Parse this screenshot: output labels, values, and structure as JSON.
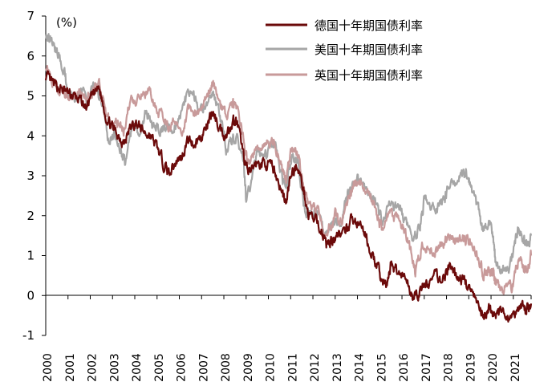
{
  "chart_data": {
    "type": "line",
    "title": "",
    "xlabel": "",
    "ylabel": "(%)",
    "ylim": [
      -1,
      7
    ],
    "xlim": [
      2000,
      2021.8
    ],
    "y_ticks": [
      "7",
      "6",
      "5",
      "4",
      "3",
      "2",
      "1",
      "0",
      "-1"
    ],
    "x_ticks": [
      "2000",
      "2001",
      "2002",
      "2003",
      "2004",
      "2005",
      "2006",
      "2007",
      "2008",
      "2009",
      "2010",
      "2011",
      "2012",
      "2013",
      "2014",
      "2015",
      "2016",
      "2017",
      "2018",
      "2019",
      "2020",
      "2021"
    ],
    "grid": false,
    "legend_position": "top-right",
    "series": [
      {
        "name": "德国十年期国债利率",
        "color": "#6b0a0a",
        "points": [
          [
            2000.0,
            5.5
          ],
          [
            2000.3,
            5.3
          ],
          [
            2000.6,
            5.2
          ],
          [
            2000.9,
            5.1
          ],
          [
            2001.2,
            5.0
          ],
          [
            2001.5,
            4.9
          ],
          [
            2001.8,
            4.7
          ],
          [
            2002.1,
            5.0
          ],
          [
            2002.4,
            5.2
          ],
          [
            2002.7,
            4.5
          ],
          [
            2003.0,
            4.2
          ],
          [
            2003.3,
            4.0
          ],
          [
            2003.5,
            3.8
          ],
          [
            2003.8,
            4.2
          ],
          [
            2004.1,
            4.3
          ],
          [
            2004.4,
            4.1
          ],
          [
            2004.7,
            4.0
          ],
          [
            2005.0,
            3.7
          ],
          [
            2005.3,
            3.3
          ],
          [
            2005.5,
            3.1
          ],
          [
            2005.8,
            3.3
          ],
          [
            2006.1,
            3.5
          ],
          [
            2006.4,
            3.9
          ],
          [
            2006.7,
            3.8
          ],
          [
            2007.0,
            4.0
          ],
          [
            2007.3,
            4.3
          ],
          [
            2007.5,
            4.6
          ],
          [
            2007.8,
            4.2
          ],
          [
            2008.1,
            4.0
          ],
          [
            2008.4,
            4.4
          ],
          [
            2008.6,
            4.3
          ],
          [
            2008.9,
            3.5
          ],
          [
            2009.1,
            3.0
          ],
          [
            2009.4,
            3.3
          ],
          [
            2009.7,
            3.3
          ],
          [
            2010.0,
            3.3
          ],
          [
            2010.3,
            3.1
          ],
          [
            2010.6,
            2.6
          ],
          [
            2010.8,
            2.3
          ],
          [
            2011.0,
            3.0
          ],
          [
            2011.3,
            3.3
          ],
          [
            2011.6,
            2.6
          ],
          [
            2011.8,
            2.0
          ],
          [
            2012.1,
            1.9
          ],
          [
            2012.4,
            1.6
          ],
          [
            2012.6,
            1.3
          ],
          [
            2012.9,
            1.4
          ],
          [
            2013.1,
            1.6
          ],
          [
            2013.4,
            1.5
          ],
          [
            2013.7,
            1.9
          ],
          [
            2014.0,
            1.8
          ],
          [
            2014.3,
            1.6
          ],
          [
            2014.6,
            1.1
          ],
          [
            2014.9,
            0.7
          ],
          [
            2015.1,
            0.4
          ],
          [
            2015.3,
            0.2
          ],
          [
            2015.5,
            0.8
          ],
          [
            2015.8,
            0.6
          ],
          [
            2016.1,
            0.5
          ],
          [
            2016.4,
            0.1
          ],
          [
            2016.6,
            -0.1
          ],
          [
            2016.9,
            0.2
          ],
          [
            2017.2,
            0.3
          ],
          [
            2017.5,
            0.5
          ],
          [
            2017.8,
            0.4
          ],
          [
            2018.1,
            0.7
          ],
          [
            2018.4,
            0.5
          ],
          [
            2018.7,
            0.4
          ],
          [
            2018.9,
            0.3
          ],
          [
            2019.2,
            0.0
          ],
          [
            2019.5,
            -0.4
          ],
          [
            2019.7,
            -0.6
          ],
          [
            2019.9,
            -0.3
          ],
          [
            2020.2,
            -0.5
          ],
          [
            2020.4,
            -0.4
          ],
          [
            2020.7,
            -0.5
          ],
          [
            2020.9,
            -0.6
          ],
          [
            2021.2,
            -0.3
          ],
          [
            2021.4,
            -0.2
          ],
          [
            2021.6,
            -0.4
          ],
          [
            2021.8,
            -0.2
          ]
        ]
      },
      {
        "name": "美国十年期国债利率",
        "color": "#a6a6a6",
        "points": [
          [
            2000.0,
            6.6
          ],
          [
            2000.2,
            6.4
          ],
          [
            2000.5,
            6.1
          ],
          [
            2000.8,
            5.7
          ],
          [
            2001.0,
            5.1
          ],
          [
            2001.3,
            5.0
          ],
          [
            2001.6,
            5.1
          ],
          [
            2001.9,
            4.9
          ],
          [
            2002.2,
            5.3
          ],
          [
            2002.5,
            4.9
          ],
          [
            2002.8,
            3.9
          ],
          [
            2003.1,
            4.0
          ],
          [
            2003.4,
            3.6
          ],
          [
            2003.6,
            3.3
          ],
          [
            2003.9,
            4.3
          ],
          [
            2004.2,
            4.0
          ],
          [
            2004.5,
            4.6
          ],
          [
            2004.8,
            4.2
          ],
          [
            2005.1,
            4.2
          ],
          [
            2005.4,
            4.2
          ],
          [
            2005.7,
            4.2
          ],
          [
            2006.0,
            4.5
          ],
          [
            2006.3,
            4.9
          ],
          [
            2006.6,
            5.1
          ],
          [
            2006.9,
            4.6
          ],
          [
            2007.2,
            4.7
          ],
          [
            2007.5,
            5.1
          ],
          [
            2007.8,
            4.6
          ],
          [
            2008.1,
            3.7
          ],
          [
            2008.4,
            3.9
          ],
          [
            2008.6,
            4.0
          ],
          [
            2008.9,
            3.3
          ],
          [
            2009.0,
            2.3
          ],
          [
            2009.3,
            3.0
          ],
          [
            2009.5,
            3.7
          ],
          [
            2009.8,
            3.4
          ],
          [
            2010.1,
            3.7
          ],
          [
            2010.3,
            3.8
          ],
          [
            2010.6,
            3.0
          ],
          [
            2010.8,
            2.6
          ],
          [
            2011.0,
            3.4
          ],
          [
            2011.3,
            3.5
          ],
          [
            2011.6,
            2.2
          ],
          [
            2011.9,
            2.0
          ],
          [
            2012.2,
            2.1
          ],
          [
            2012.5,
            1.6
          ],
          [
            2012.8,
            1.7
          ],
          [
            2013.0,
            1.9
          ],
          [
            2013.3,
            1.8
          ],
          [
            2013.5,
            2.5
          ],
          [
            2013.7,
            2.7
          ],
          [
            2014.0,
            2.9
          ],
          [
            2014.3,
            2.7
          ],
          [
            2014.6,
            2.5
          ],
          [
            2014.9,
            2.2
          ],
          [
            2015.1,
            1.9
          ],
          [
            2015.4,
            2.3
          ],
          [
            2015.7,
            2.2
          ],
          [
            2015.9,
            2.2
          ],
          [
            2016.2,
            1.8
          ],
          [
            2016.5,
            1.4
          ],
          [
            2016.8,
            1.7
          ],
          [
            2017.0,
            2.4
          ],
          [
            2017.3,
            2.3
          ],
          [
            2017.6,
            2.2
          ],
          [
            2017.9,
            2.4
          ],
          [
            2018.1,
            2.8
          ],
          [
            2018.4,
            2.9
          ],
          [
            2018.7,
            3.0
          ],
          [
            2018.9,
            3.1
          ],
          [
            2019.1,
            2.7
          ],
          [
            2019.4,
            2.2
          ],
          [
            2019.6,
            1.6
          ],
          [
            2019.9,
            1.9
          ],
          [
            2020.1,
            1.5
          ],
          [
            2020.2,
            0.7
          ],
          [
            2020.5,
            0.7
          ],
          [
            2020.8,
            0.7
          ],
          [
            2021.0,
            1.1
          ],
          [
            2021.2,
            1.7
          ],
          [
            2021.4,
            1.5
          ],
          [
            2021.6,
            1.3
          ],
          [
            2021.8,
            1.5
          ]
        ]
      },
      {
        "name": "英国十年期国债利率",
        "color": "#c89a9a",
        "points": [
          [
            2000.0,
            5.8
          ],
          [
            2000.3,
            5.4
          ],
          [
            2000.6,
            5.2
          ],
          [
            2000.9,
            5.0
          ],
          [
            2001.2,
            4.9
          ],
          [
            2001.5,
            5.2
          ],
          [
            2001.8,
            4.9
          ],
          [
            2002.1,
            5.1
          ],
          [
            2002.4,
            5.3
          ],
          [
            2002.7,
            4.5
          ],
          [
            2003.0,
            4.3
          ],
          [
            2003.3,
            4.4
          ],
          [
            2003.5,
            4.1
          ],
          [
            2003.8,
            4.9
          ],
          [
            2004.1,
            4.8
          ],
          [
            2004.4,
            5.1
          ],
          [
            2004.7,
            5.1
          ],
          [
            2005.0,
            4.6
          ],
          [
            2005.3,
            4.5
          ],
          [
            2005.5,
            4.2
          ],
          [
            2005.8,
            4.4
          ],
          [
            2006.1,
            4.1
          ],
          [
            2006.4,
            4.6
          ],
          [
            2006.7,
            4.6
          ],
          [
            2007.0,
            4.7
          ],
          [
            2007.3,
            5.1
          ],
          [
            2007.5,
            5.4
          ],
          [
            2007.8,
            4.9
          ],
          [
            2008.1,
            4.5
          ],
          [
            2008.4,
            4.8
          ],
          [
            2008.6,
            4.7
          ],
          [
            2008.9,
            3.9
          ],
          [
            2009.1,
            3.3
          ],
          [
            2009.4,
            3.6
          ],
          [
            2009.7,
            3.8
          ],
          [
            2010.0,
            3.9
          ],
          [
            2010.3,
            3.8
          ],
          [
            2010.6,
            3.2
          ],
          [
            2010.8,
            2.9
          ],
          [
            2011.0,
            3.6
          ],
          [
            2011.3,
            3.6
          ],
          [
            2011.6,
            2.7
          ],
          [
            2011.9,
            2.2
          ],
          [
            2012.2,
            2.2
          ],
          [
            2012.5,
            1.6
          ],
          [
            2012.8,
            1.8
          ],
          [
            2013.0,
            2.0
          ],
          [
            2013.3,
            1.8
          ],
          [
            2013.6,
            2.4
          ],
          [
            2013.8,
            2.8
          ],
          [
            2014.0,
            2.9
          ],
          [
            2014.3,
            2.7
          ],
          [
            2014.6,
            2.5
          ],
          [
            2014.9,
            2.0
          ],
          [
            2015.1,
            1.6
          ],
          [
            2015.4,
            2.1
          ],
          [
            2015.7,
            1.9
          ],
          [
            2015.9,
            1.9
          ],
          [
            2016.2,
            1.5
          ],
          [
            2016.5,
            0.8
          ],
          [
            2016.6,
            0.6
          ],
          [
            2016.9,
            1.3
          ],
          [
            2017.2,
            1.2
          ],
          [
            2017.5,
            1.1
          ],
          [
            2017.8,
            1.3
          ],
          [
            2018.1,
            1.5
          ],
          [
            2018.4,
            1.4
          ],
          [
            2018.7,
            1.5
          ],
          [
            2018.9,
            1.4
          ],
          [
            2019.2,
            1.2
          ],
          [
            2019.5,
            0.8
          ],
          [
            2019.7,
            0.5
          ],
          [
            2019.9,
            0.7
          ],
          [
            2020.1,
            0.6
          ],
          [
            2020.2,
            0.3
          ],
          [
            2020.5,
            0.2
          ],
          [
            2020.8,
            0.2
          ],
          [
            2021.0,
            0.3
          ],
          [
            2021.2,
            0.8
          ],
          [
            2021.4,
            0.8
          ],
          [
            2021.6,
            0.6
          ],
          [
            2021.8,
            1.0
          ]
        ]
      }
    ]
  }
}
